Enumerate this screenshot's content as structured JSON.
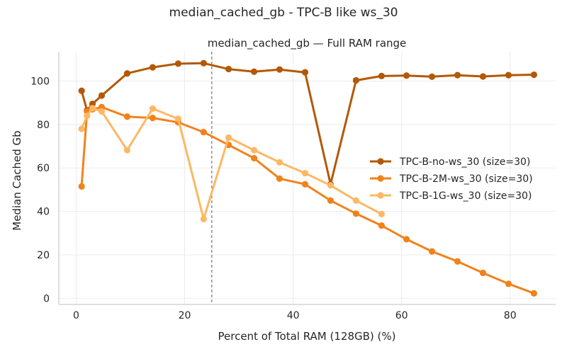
{
  "figure": {
    "suptitle": "median_cached_gb - TPC-B like ws_30"
  },
  "chart_data": {
    "type": "line",
    "title": "median_cached_gb — Full RAM range",
    "xlabel": "Percent of Total RAM (128GB) (%)",
    "ylabel": "Median Cached Gb",
    "xlim": [
      -3.2,
      88.4
    ],
    "ylim": [
      -2.8,
      113.5
    ],
    "xticks": [
      0,
      20,
      40,
      60,
      80
    ],
    "yticks": [
      0,
      20,
      40,
      60,
      80,
      100
    ],
    "grid": true,
    "legend_position": "center-right",
    "reference_line": {
      "x": 25,
      "style": "dashed",
      "color": "#7f7f7f"
    },
    "series": [
      {
        "name": "TPC-B-no-ws_30 (size=30)",
        "color": "#b35806",
        "x": [
          1,
          2,
          3,
          4.7,
          9.4,
          14.1,
          18.8,
          23.5,
          28.1,
          32.8,
          37.5,
          42.2,
          46.9,
          51.6,
          56.3,
          60.9,
          65.6,
          70.3,
          75,
          79.7,
          84.4
        ],
        "y": [
          95.5,
          86.5,
          89.5,
          93.3,
          103.5,
          106.3,
          108,
          108.2,
          105.5,
          104.3,
          105.3,
          104,
          52.5,
          100.3,
          102.3,
          102.5,
          102,
          102.7,
          102.1,
          102.7,
          102.9
        ]
      },
      {
        "name": "TPC-B-2M-ws_30 (size=30)",
        "color": "#f1821b",
        "x": [
          1,
          2,
          3,
          4.7,
          9.4,
          14.1,
          18.8,
          23.5,
          28.1,
          32.8,
          37.5,
          42.2,
          46.9,
          51.6,
          56.3,
          60.9,
          65.6,
          70.3,
          75,
          79.7,
          84.4
        ],
        "y": [
          51.5,
          86,
          87,
          88,
          83.6,
          83,
          81,
          76.5,
          70.6,
          64.5,
          55.1,
          52.5,
          45,
          39,
          33.5,
          27.2,
          21.6,
          17,
          11.7,
          6.7,
          2.3
        ]
      },
      {
        "name": "TPC-B-1G-ws_30 (size=30)",
        "color": "#fdb863",
        "x": [
          1,
          2,
          3,
          4.7,
          9.4,
          14.1,
          18.8,
          23.5,
          28.1,
          32.8,
          37.5,
          42.2,
          46.9,
          51.6,
          56.3
        ],
        "y": [
          78,
          84,
          87.5,
          86,
          68.2,
          87.3,
          82.6,
          36.5,
          74,
          68.2,
          62.6,
          57.6,
          52,
          45,
          38.8
        ]
      }
    ]
  }
}
